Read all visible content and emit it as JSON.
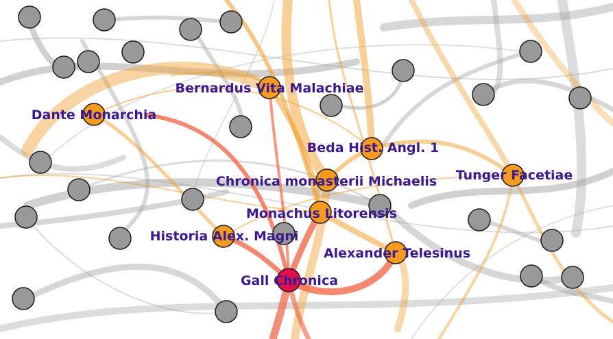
{
  "colors": {
    "background": "#ffffff",
    "edge_gray": "#9a9a9a",
    "edge_orange": "#f0a030",
    "edge_red": "#f06040",
    "node_gray": "#999999",
    "node_orange": "#f79b1e",
    "node_focus": "#e0104a",
    "node_stroke": "#1a1a1a",
    "label": "#3b1a8f"
  },
  "labels": {
    "bernardus": "Bernardus Vita Malachiae",
    "dante": "Dante Monarchia",
    "beda": "Beda Hist. Angl. 1",
    "chronica_michaelis": "Chronica monasterii Michaelis",
    "tunger": "Tunger Facetiae",
    "monachus": "Monachus Litorensis",
    "historia_alex": "Historia Alex. Magni",
    "alexander_telesinus": "Alexander Telesinus",
    "gall": "Gall Chronica"
  }
}
